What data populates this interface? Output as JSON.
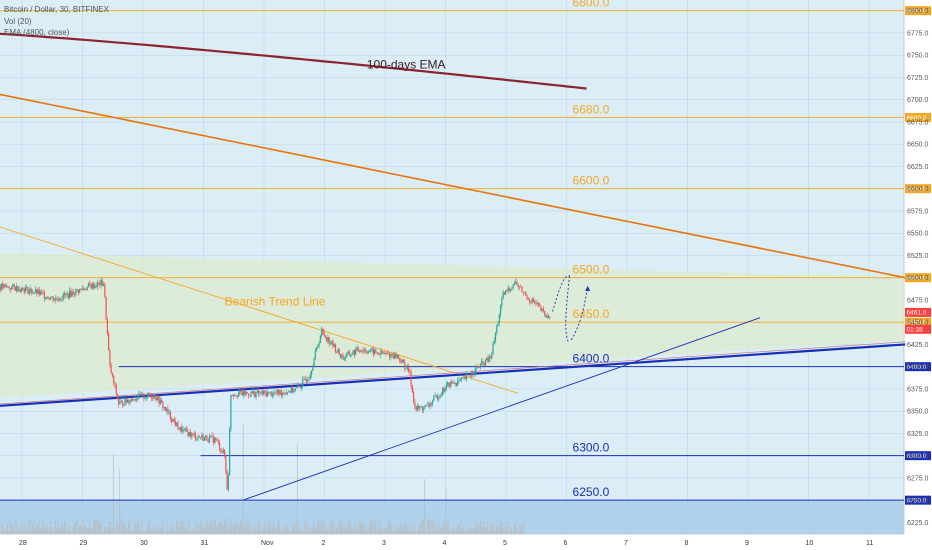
{
  "chart_data": {
    "type": "candlestick",
    "title": "Bitcoin / Dollar, 30, BITFINEX",
    "indicators": [
      "Vol (20)",
      "EMA (4800, close)"
    ],
    "x_ticks": [
      "28",
      "29",
      "30",
      "31",
      "Nov",
      "2",
      "3",
      "4",
      "5",
      "6",
      "7",
      "8",
      "9",
      "10",
      "11"
    ],
    "y_ticks": [
      6225,
      6250,
      6275,
      6300,
      6325,
      6350,
      6375,
      6400,
      6425,
      6450,
      6475,
      6500,
      6525,
      6550,
      6575,
      6600,
      6625,
      6650,
      6675,
      6700,
      6725,
      6750,
      6775,
      6800
    ],
    "ylim": [
      6212,
      6812
    ],
    "levels": [
      {
        "value": 6800,
        "label": "6800.0",
        "tag": "6800.0",
        "color": "#f5a623"
      },
      {
        "value": 6680,
        "label": "6680.0",
        "tag": "6680.0",
        "color": "#f5a623"
      },
      {
        "value": 6600,
        "label": "6600.0",
        "tag": "6600.0",
        "color": "#f5a623"
      },
      {
        "value": 6500,
        "label": "6500.0",
        "tag": "6500.0",
        "color": "#f5a623"
      },
      {
        "value": 6450,
        "label": "6450.0",
        "tag": "6450.0",
        "color": "#f5a623"
      },
      {
        "value": 6400,
        "label": "6400.0",
        "tag": "6400.0",
        "color": "#1a2fb8"
      },
      {
        "value": 6300,
        "label": "6300.0",
        "tag": "6300.0",
        "color": "#1a2fb8"
      },
      {
        "value": 6250,
        "label": "6250.0",
        "tag": "6250.0",
        "color": "#1a2fb8"
      }
    ],
    "price_tags": [
      {
        "value": 6461.0,
        "label": "6461.0",
        "color": "#ff4040"
      },
      {
        "value": 6442.0,
        "label": "01:38",
        "color": "#ff4040"
      }
    ],
    "annotations": {
      "ema": "100-days EMA",
      "bearish": "Bearish Trend Line"
    },
    "colors": {
      "up": "#26a69a",
      "down": "#ef5350",
      "ema": "#8b2330",
      "orange_line": "#e8740c",
      "thin_orange": "#f5a623",
      "blue_line": "#1a2fb8",
      "background": "#dbeef7"
    }
  }
}
